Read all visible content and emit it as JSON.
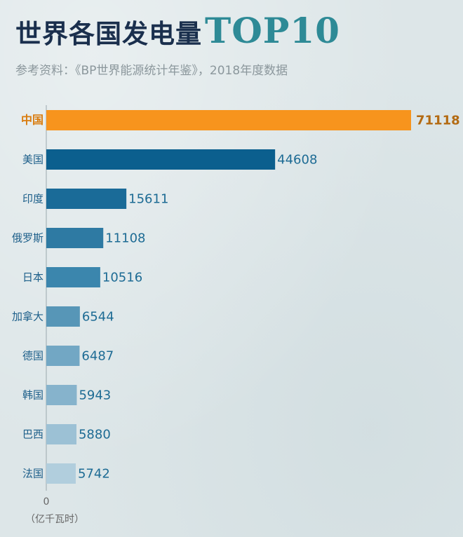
{
  "header": {
    "title_cn": "世界各国发电量",
    "title_en": "TOP10",
    "subtitle": "参考资料：《BP世界能源统计年鉴》，2018年度数据"
  },
  "chart_data": {
    "type": "bar",
    "orientation": "horizontal",
    "title": "世界各国发电量TOP10",
    "subtitle": "参考资料：《BP世界能源统计年鉴》，2018年度数据",
    "categories": [
      "中国",
      "美国",
      "印度",
      "俄罗斯",
      "日本",
      "加拿大",
      "德国",
      "韩国",
      "巴西",
      "法国"
    ],
    "values": [
      71118,
      44608,
      15611,
      11108,
      10516,
      6544,
      6487,
      5943,
      5880,
      5742
    ],
    "value_labels": [
      "71118",
      "44608",
      "15611",
      "11108",
      "10516",
      "6544",
      "6487",
      "5943",
      "5880",
      "5742"
    ],
    "unit": "（亿千瓦时）",
    "axis_zero_label": "0",
    "xlim": [
      0,
      71118
    ],
    "highlight_index": 0,
    "colors": [
      "#f7941d",
      "#0b5f8e",
      "#1a6b98",
      "#2e7aa3",
      "#3b86ad",
      "#5796b7",
      "#72a7c4",
      "#86b3cc",
      "#9cc1d5",
      "#b1cedd"
    ],
    "highlight_label_color": "#d97c0e",
    "grid": false,
    "legend": "none"
  }
}
